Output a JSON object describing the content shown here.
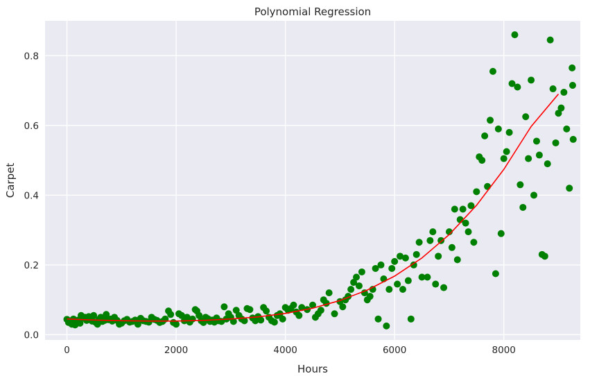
{
  "chart_data": {
    "type": "scatter",
    "title": "Polynomial Regression",
    "xlabel": "Hours",
    "ylabel": "Carpet",
    "xlim": [
      -400,
      9400
    ],
    "ylim": [
      -0.015,
      0.9
    ],
    "xticks": [
      0,
      2000,
      4000,
      6000,
      8000
    ],
    "yticks": [
      0.0,
      0.2,
      0.4,
      0.6,
      0.8
    ],
    "xtick_labels": [
      "0",
      "2000",
      "4000",
      "6000",
      "8000"
    ],
    "ytick_labels": [
      "0.0",
      "0.2",
      "0.4",
      "0.6",
      "0.8"
    ],
    "grid": true,
    "background": "#EAEAF2",
    "grid_color": "#ffffff",
    "series": [
      {
        "kind": "scatter",
        "color": "#008000",
        "points": [
          [
            0,
            0.044
          ],
          [
            30,
            0.035
          ],
          [
            60,
            0.04
          ],
          [
            90,
            0.03
          ],
          [
            120,
            0.045
          ],
          [
            150,
            0.028
          ],
          [
            180,
            0.038
          ],
          [
            210,
            0.042
          ],
          [
            240,
            0.033
          ],
          [
            260,
            0.055
          ],
          [
            290,
            0.048
          ],
          [
            330,
            0.05
          ],
          [
            360,
            0.041
          ],
          [
            400,
            0.052
          ],
          [
            430,
            0.046
          ],
          [
            460,
            0.039
          ],
          [
            490,
            0.055
          ],
          [
            520,
            0.036
          ],
          [
            560,
            0.03
          ],
          [
            590,
            0.044
          ],
          [
            620,
            0.05
          ],
          [
            650,
            0.038
          ],
          [
            690,
            0.041
          ],
          [
            720,
            0.058
          ],
          [
            760,
            0.043
          ],
          [
            800,
            0.045
          ],
          [
            830,
            0.039
          ],
          [
            870,
            0.05
          ],
          [
            920,
            0.041
          ],
          [
            960,
            0.03
          ],
          [
            1000,
            0.033
          ],
          [
            1050,
            0.04
          ],
          [
            1100,
            0.044
          ],
          [
            1150,
            0.036
          ],
          [
            1200,
            0.038
          ],
          [
            1250,
            0.042
          ],
          [
            1300,
            0.03
          ],
          [
            1350,
            0.047
          ],
          [
            1400,
            0.04
          ],
          [
            1450,
            0.038
          ],
          [
            1500,
            0.036
          ],
          [
            1550,
            0.05
          ],
          [
            1600,
            0.044
          ],
          [
            1650,
            0.041
          ],
          [
            1700,
            0.035
          ],
          [
            1750,
            0.038
          ],
          [
            1800,
            0.045
          ],
          [
            1860,
            0.068
          ],
          [
            1900,
            0.058
          ],
          [
            1950,
            0.035
          ],
          [
            2000,
            0.03
          ],
          [
            2050,
            0.06
          ],
          [
            2100,
            0.055
          ],
          [
            2150,
            0.04
          ],
          [
            2200,
            0.05
          ],
          [
            2250,
            0.036
          ],
          [
            2300,
            0.045
          ],
          [
            2350,
            0.072
          ],
          [
            2380,
            0.068
          ],
          [
            2420,
            0.055
          ],
          [
            2460,
            0.04
          ],
          [
            2500,
            0.035
          ],
          [
            2540,
            0.05
          ],
          [
            2580,
            0.046
          ],
          [
            2620,
            0.038
          ],
          [
            2660,
            0.042
          ],
          [
            2700,
            0.036
          ],
          [
            2740,
            0.048
          ],
          [
            2780,
            0.04
          ],
          [
            2830,
            0.038
          ],
          [
            2880,
            0.08
          ],
          [
            2920,
            0.045
          ],
          [
            2960,
            0.06
          ],
          [
            3000,
            0.05
          ],
          [
            3050,
            0.038
          ],
          [
            3100,
            0.07
          ],
          [
            3150,
            0.055
          ],
          [
            3200,
            0.045
          ],
          [
            3250,
            0.04
          ],
          [
            3300,
            0.075
          ],
          [
            3350,
            0.072
          ],
          [
            3400,
            0.048
          ],
          [
            3450,
            0.04
          ],
          [
            3500,
            0.052
          ],
          [
            3550,
            0.042
          ],
          [
            3600,
            0.078
          ],
          [
            3650,
            0.068
          ],
          [
            3700,
            0.05
          ],
          [
            3750,
            0.04
          ],
          [
            3800,
            0.036
          ],
          [
            3850,
            0.055
          ],
          [
            3900,
            0.06
          ],
          [
            3950,
            0.045
          ],
          [
            4000,
            0.078
          ],
          [
            4050,
            0.07
          ],
          [
            4100,
            0.075
          ],
          [
            4150,
            0.085
          ],
          [
            4200,
            0.065
          ],
          [
            4250,
            0.055
          ],
          [
            4300,
            0.078
          ],
          [
            4400,
            0.072
          ],
          [
            4500,
            0.085
          ],
          [
            4550,
            0.05
          ],
          [
            4600,
            0.06
          ],
          [
            4650,
            0.07
          ],
          [
            4700,
            0.1
          ],
          [
            4750,
            0.09
          ],
          [
            4800,
            0.12
          ],
          [
            4900,
            0.06
          ],
          [
            5000,
            0.095
          ],
          [
            5050,
            0.08
          ],
          [
            5100,
            0.1
          ],
          [
            5150,
            0.11
          ],
          [
            5200,
            0.13
          ],
          [
            5250,
            0.15
          ],
          [
            5300,
            0.165
          ],
          [
            5350,
            0.14
          ],
          [
            5400,
            0.18
          ],
          [
            5450,
            0.12
          ],
          [
            5500,
            0.1
          ],
          [
            5550,
            0.11
          ],
          [
            5600,
            0.13
          ],
          [
            5650,
            0.19
          ],
          [
            5700,
            0.045
          ],
          [
            5750,
            0.2
          ],
          [
            5800,
            0.16
          ],
          [
            5850,
            0.025
          ],
          [
            5900,
            0.13
          ],
          [
            5950,
            0.19
          ],
          [
            6000,
            0.21
          ],
          [
            6050,
            0.145
          ],
          [
            6100,
            0.225
          ],
          [
            6150,
            0.13
          ],
          [
            6200,
            0.22
          ],
          [
            6250,
            0.155
          ],
          [
            6300,
            0.045
          ],
          [
            6350,
            0.2
          ],
          [
            6400,
            0.23
          ],
          [
            6450,
            0.265
          ],
          [
            6500,
            0.165
          ],
          [
            6600,
            0.165
          ],
          [
            6650,
            0.27
          ],
          [
            6700,
            0.295
          ],
          [
            6750,
            0.145
          ],
          [
            6800,
            0.225
          ],
          [
            6850,
            0.27
          ],
          [
            6900,
            0.135
          ],
          [
            7000,
            0.295
          ],
          [
            7050,
            0.25
          ],
          [
            7100,
            0.36
          ],
          [
            7150,
            0.215
          ],
          [
            7200,
            0.33
          ],
          [
            7250,
            0.36
          ],
          [
            7300,
            0.32
          ],
          [
            7350,
            0.295
          ],
          [
            7400,
            0.37
          ],
          [
            7450,
            0.265
          ],
          [
            7500,
            0.41
          ],
          [
            7550,
            0.51
          ],
          [
            7600,
            0.5
          ],
          [
            7650,
            0.57
          ],
          [
            7700,
            0.425
          ],
          [
            7750,
            0.615
          ],
          [
            7800,
            0.755
          ],
          [
            7850,
            0.175
          ],
          [
            7900,
            0.59
          ],
          [
            7950,
            0.29
          ],
          [
            8000,
            0.505
          ],
          [
            8050,
            0.525
          ],
          [
            8100,
            0.58
          ],
          [
            8150,
            0.72
          ],
          [
            8200,
            0.86
          ],
          [
            8250,
            0.71
          ],
          [
            8300,
            0.43
          ],
          [
            8350,
            0.365
          ],
          [
            8400,
            0.625
          ],
          [
            8450,
            0.505
          ],
          [
            8500,
            0.73
          ],
          [
            8550,
            0.4
          ],
          [
            8600,
            0.555
          ],
          [
            8650,
            0.515
          ],
          [
            8700,
            0.23
          ],
          [
            8750,
            0.225
          ],
          [
            8800,
            0.49
          ],
          [
            8850,
            0.845
          ],
          [
            8900,
            0.705
          ],
          [
            8950,
            0.55
          ],
          [
            9000,
            0.635
          ],
          [
            9050,
            0.65
          ],
          [
            9100,
            0.695
          ],
          [
            9150,
            0.59
          ],
          [
            9200,
            0.42
          ],
          [
            9250,
            0.765
          ],
          [
            9260,
            0.715
          ],
          [
            9270,
            0.56
          ]
        ]
      },
      {
        "kind": "line",
        "color": "#FF0000",
        "points": [
          [
            0,
            0.045
          ],
          [
            500,
            0.042
          ],
          [
            1000,
            0.04
          ],
          [
            1500,
            0.039
          ],
          [
            2000,
            0.039
          ],
          [
            2500,
            0.041
          ],
          [
            3000,
            0.045
          ],
          [
            3500,
            0.051
          ],
          [
            4000,
            0.061
          ],
          [
            4500,
            0.076
          ],
          [
            5000,
            0.098
          ],
          [
            5500,
            0.128
          ],
          [
            6000,
            0.168
          ],
          [
            6500,
            0.22
          ],
          [
            7000,
            0.287
          ],
          [
            7500,
            0.371
          ],
          [
            8000,
            0.474
          ],
          [
            8500,
            0.597
          ],
          [
            9000,
            0.69
          ]
        ]
      }
    ]
  }
}
